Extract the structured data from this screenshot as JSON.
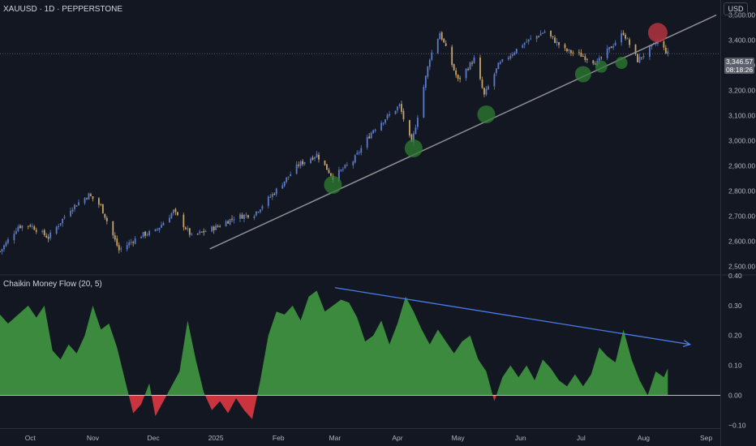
{
  "header": {
    "symbol": "XAUUSD · 1D · PEPPERSTONE",
    "currency": "USD"
  },
  "price_tag": {
    "price": "3,346.57",
    "countdown": "08:18:26"
  },
  "colors": {
    "background": "#131722",
    "candle_up": "#5b7bc7",
    "candle_down": "#c8a46a",
    "trendline": "#8e8e93",
    "support_touch": "#2e7d32",
    "resistance_touch": "#b2343f",
    "cmf_positive": "#3b8a3e",
    "cmf_negative": "#c9343f",
    "divergence_arrow": "#4a7de8"
  },
  "chart_data": [
    {
      "type": "candlestick",
      "title": "XAUUSD · 1D · PEPPERSTONE",
      "x_axis": {
        "type": "date",
        "range": [
          "2024-09-16",
          "2025-09-08"
        ],
        "tick_labels": [
          "Oct",
          "Nov",
          "Dec",
          "2025",
          "Feb",
          "Mar",
          "Apr",
          "May",
          "Jun",
          "Jul",
          "Aug",
          "Sep"
        ],
        "tick_dates": [
          "2024-10-01",
          "2024-11-01",
          "2024-12-01",
          "2025-01-01",
          "2025-02-01",
          "2025-03-01",
          "2025-04-01",
          "2025-05-01",
          "2025-06-01",
          "2025-07-01",
          "2025-08-01",
          "2025-09-01"
        ]
      },
      "y_axis": {
        "range": [
          2470,
          3560
        ],
        "tick_labels": [
          "2,500.00",
          "2,600.00",
          "2,700.00",
          "2,800.00",
          "2,900.00",
          "3,000.00",
          "3,100.00",
          "3,200.00",
          "3,300.00",
          "3,400.00",
          "3,500.00"
        ],
        "tick_values": [
          2500,
          2600,
          2700,
          2800,
          2900,
          3000,
          3100,
          3200,
          3300,
          3400,
          3500
        ]
      },
      "last_price": 3346.57,
      "close_series": [
        [
          "2024-09-16",
          2560
        ],
        [
          "2024-09-25",
          2660
        ],
        [
          "2024-10-01",
          2665
        ],
        [
          "2024-10-10",
          2615
        ],
        [
          "2024-10-21",
          2730
        ],
        [
          "2024-10-30",
          2785
        ],
        [
          "2024-11-05",
          2740
        ],
        [
          "2024-11-14",
          2565
        ],
        [
          "2024-11-25",
          2625
        ],
        [
          "2024-12-02",
          2640
        ],
        [
          "2024-12-11",
          2720
        ],
        [
          "2024-12-20",
          2620
        ],
        [
          "2025-01-02",
          2660
        ],
        [
          "2025-01-10",
          2695
        ],
        [
          "2025-01-20",
          2710
        ],
        [
          "2025-01-30",
          2795
        ],
        [
          "2025-02-11",
          2905
        ],
        [
          "2025-02-20",
          2945
        ],
        [
          "2025-02-28",
          2855
        ],
        [
          "2025-03-10",
          2920
        ],
        [
          "2025-03-20",
          3045
        ],
        [
          "2025-04-02",
          3140
        ],
        [
          "2025-04-08",
          2985
        ],
        [
          "2025-04-17",
          3330
        ],
        [
          "2025-04-22",
          3430
        ],
        [
          "2025-05-01",
          3240
        ],
        [
          "2025-05-09",
          3325
        ],
        [
          "2025-05-14",
          3180
        ],
        [
          "2025-05-21",
          3300
        ],
        [
          "2025-06-02",
          3385
        ],
        [
          "2025-06-13",
          3435
        ],
        [
          "2025-06-23",
          3360
        ],
        [
          "2025-07-01",
          3340
        ],
        [
          "2025-07-09",
          3310
        ],
        [
          "2025-07-22",
          3430
        ],
        [
          "2025-07-29",
          3320
        ],
        [
          "2025-08-08",
          3395
        ],
        [
          "2025-08-13",
          3346.57
        ]
      ],
      "annotations": {
        "trendline": {
          "from": [
            "2024-12-29",
            2570
          ],
          "to": [
            "2025-09-06",
            3500
          ]
        },
        "support_touches": [
          [
            "2025-02-28",
            2825
          ],
          [
            "2025-04-09",
            2970
          ],
          [
            "2025-05-15",
            3105
          ],
          [
            "2025-07-02",
            3265
          ],
          [
            "2025-07-11",
            3295
          ],
          [
            "2025-07-21",
            3310
          ]
        ],
        "resistance_touch": [
          "2025-08-08",
          3430
        ]
      }
    },
    {
      "type": "area",
      "title": "Chaikin Money Flow (20, 5)",
      "y_axis": {
        "range": [
          -0.11,
          0.4
        ],
        "tick_labels": [
          "−0.10",
          "0.00",
          "0.10",
          "0.20",
          "0.30",
          "0.40"
        ],
        "tick_values": [
          -0.1,
          0,
          0.1,
          0.2,
          0.3,
          0.4
        ]
      },
      "series": [
        {
          "values": [
            [
              "2024-09-16",
              0.27
            ],
            [
              "2024-09-20",
              0.24
            ],
            [
              "2024-09-25",
              0.27
            ],
            [
              "2024-09-30",
              0.3
            ],
            [
              "2024-10-04",
              0.26
            ],
            [
              "2024-10-08",
              0.3
            ],
            [
              "2024-10-12",
              0.15
            ],
            [
              "2024-10-16",
              0.12
            ],
            [
              "2024-10-20",
              0.17
            ],
            [
              "2024-10-24",
              0.14
            ],
            [
              "2024-10-28",
              0.2
            ],
            [
              "2024-11-01",
              0.3
            ],
            [
              "2024-11-05",
              0.22
            ],
            [
              "2024-11-09",
              0.24
            ],
            [
              "2024-11-13",
              0.16
            ],
            [
              "2024-11-17",
              0.05
            ],
            [
              "2024-11-21",
              -0.06
            ],
            [
              "2024-11-25",
              -0.03
            ],
            [
              "2024-11-29",
              0.04
            ],
            [
              "2024-12-02",
              -0.07
            ],
            [
              "2024-12-06",
              -0.02
            ],
            [
              "2024-12-10",
              0.03
            ],
            [
              "2024-12-14",
              0.08
            ],
            [
              "2024-12-18",
              0.25
            ],
            [
              "2024-12-22",
              0.12
            ],
            [
              "2024-12-26",
              0.01
            ],
            [
              "2024-12-30",
              -0.05
            ],
            [
              "2025-01-03",
              -0.02
            ],
            [
              "2025-01-07",
              -0.06
            ],
            [
              "2025-01-11",
              -0.01
            ],
            [
              "2025-01-15",
              -0.05
            ],
            [
              "2025-01-19",
              -0.08
            ],
            [
              "2025-01-23",
              0.05
            ],
            [
              "2025-01-27",
              0.2
            ],
            [
              "2025-01-31",
              0.28
            ],
            [
              "2025-02-04",
              0.27
            ],
            [
              "2025-02-08",
              0.3
            ],
            [
              "2025-02-12",
              0.25
            ],
            [
              "2025-02-16",
              0.33
            ],
            [
              "2025-02-20",
              0.35
            ],
            [
              "2025-02-24",
              0.28
            ],
            [
              "2025-02-28",
              0.3
            ],
            [
              "2025-03-04",
              0.32
            ],
            [
              "2025-03-08",
              0.31
            ],
            [
              "2025-03-12",
              0.26
            ],
            [
              "2025-03-16",
              0.18
            ],
            [
              "2025-03-20",
              0.2
            ],
            [
              "2025-03-24",
              0.25
            ],
            [
              "2025-03-28",
              0.17
            ],
            [
              "2025-04-01",
              0.24
            ],
            [
              "2025-04-05",
              0.33
            ],
            [
              "2025-04-09",
              0.28
            ],
            [
              "2025-04-13",
              0.22
            ],
            [
              "2025-04-17",
              0.17
            ],
            [
              "2025-04-21",
              0.22
            ],
            [
              "2025-04-25",
              0.18
            ],
            [
              "2025-04-29",
              0.14
            ],
            [
              "2025-05-03",
              0.18
            ],
            [
              "2025-05-07",
              0.2
            ],
            [
              "2025-05-11",
              0.12
            ],
            [
              "2025-05-15",
              0.08
            ],
            [
              "2025-05-19",
              -0.02
            ],
            [
              "2025-05-23",
              0.06
            ],
            [
              "2025-05-27",
              0.1
            ],
            [
              "2025-05-31",
              0.06
            ],
            [
              "2025-06-04",
              0.1
            ],
            [
              "2025-06-08",
              0.05
            ],
            [
              "2025-06-12",
              0.12
            ],
            [
              "2025-06-16",
              0.09
            ],
            [
              "2025-06-20",
              0.05
            ],
            [
              "2025-06-24",
              0.03
            ],
            [
              "2025-06-28",
              0.07
            ],
            [
              "2025-07-02",
              0.03
            ],
            [
              "2025-07-06",
              0.07
            ],
            [
              "2025-07-10",
              0.16
            ],
            [
              "2025-07-14",
              0.13
            ],
            [
              "2025-07-18",
              0.11
            ],
            [
              "2025-07-22",
              0.22
            ],
            [
              "2025-07-26",
              0.12
            ],
            [
              "2025-07-30",
              0.05
            ],
            [
              "2025-08-03",
              0.0
            ],
            [
              "2025-08-07",
              0.08
            ],
            [
              "2025-08-11",
              0.06
            ],
            [
              "2025-08-13",
              0.09
            ]
          ]
        }
      ],
      "annotations": {
        "divergence_arrow": {
          "from": [
            "2025-03-01",
            0.36
          ],
          "to": [
            "2025-08-24",
            0.17
          ]
        }
      }
    }
  ]
}
